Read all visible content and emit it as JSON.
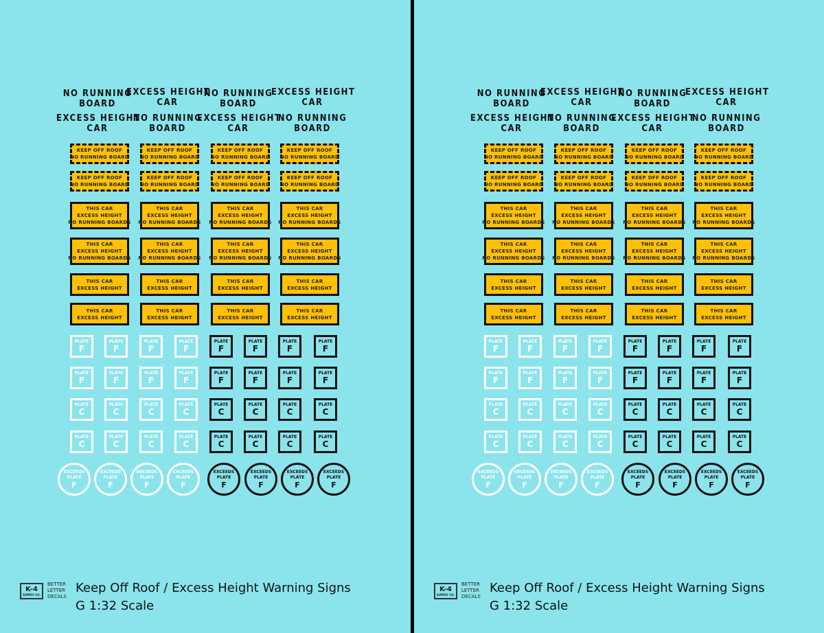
{
  "labels": {
    "no_running_board": [
      "NO RUNNING",
      "BOARD"
    ],
    "excess_height_car": [
      "EXCESS HEIGHT",
      "CAR"
    ]
  },
  "signs": {
    "keep_off_roof": [
      "KEEP OFF ROOF",
      "NO RUNNING BOARD"
    ],
    "excess_height_no_boards": [
      "THIS CAR",
      "EXCESS HEIGHT",
      "NO RUNNING BOARDS"
    ],
    "excess_height": [
      "THIS CAR",
      "EXCESS HEIGHT"
    ]
  },
  "plates": {
    "plate_label": "PLATE",
    "letter_f": "F",
    "letter_c": "C",
    "exceeds": "EXCEEDS",
    "exceeds_plate": "PLATE"
  },
  "footer": {
    "logo_mark": "K-4",
    "logo_sub": "SUPPLY CO.",
    "logo_text": [
      "BETTER",
      "LETTER",
      "DECALS"
    ],
    "title": "Keep Off Roof / Excess Height Warning Signs",
    "scale": "G 1:32 Scale"
  },
  "colors": {
    "background": "#8be4ec",
    "sign_yellow": "#ffc107",
    "ink_black": "#111111",
    "ink_white": "#ffffff"
  }
}
